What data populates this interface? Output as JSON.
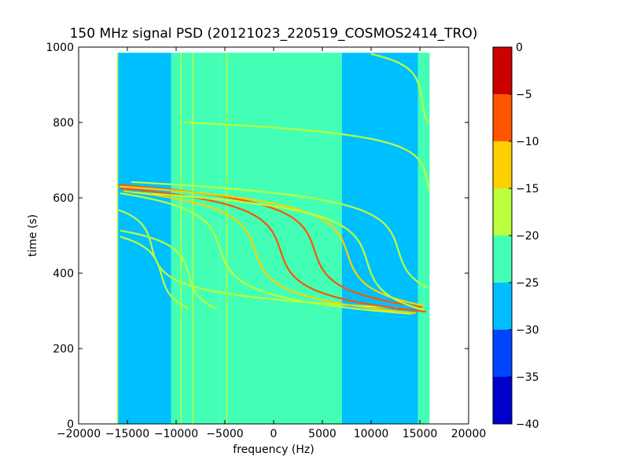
{
  "chart_data": {
    "type": "heatmap",
    "title": "150 MHz signal PSD (20121023_220519_COSMOS2414_TRO)",
    "xlabel": "frequency (Hz)",
    "ylabel": "time (s)",
    "xlim": [
      -20000,
      20000
    ],
    "ylim": [
      0,
      1000
    ],
    "x_ticks": [
      -20000,
      -15000,
      -10000,
      -5000,
      0,
      5000,
      10000,
      15000,
      20000
    ],
    "y_ticks": [
      0,
      200,
      400,
      600,
      800,
      1000
    ],
    "data_extent": {
      "x": [
        -16000,
        16000
      ],
      "y": [
        0,
        985
      ]
    },
    "grid": false,
    "colorbar": {
      "levels": [
        -40,
        -35,
        -30,
        -25,
        -20,
        -15,
        -10,
        -5,
        0
      ],
      "colors": [
        "#0000cd",
        "#0044ff",
        "#00bfff",
        "#43ffb5",
        "#b9ff3d",
        "#ffd000",
        "#ff5500",
        "#cd0000"
      ]
    },
    "background_bands": [
      {
        "x": [
          -16000,
          -10500
        ],
        "level": -27.5
      },
      {
        "x": [
          -10500,
          -5500
        ],
        "level": -25.0
      },
      {
        "x": [
          -5500,
          7000
        ],
        "level": -22.5
      },
      {
        "x": [
          7000,
          14800
        ],
        "level": -27.5
      },
      {
        "x": [
          14800,
          16000
        ],
        "level": -25.0
      }
    ],
    "vertical_lines": [
      {
        "f": -16000,
        "level": -17.5
      },
      {
        "f": -9500,
        "level": -17.5
      },
      {
        "f": -9000,
        "level": -22.5
      },
      {
        "f": -8300,
        "level": -17.5
      },
      {
        "f": -4800,
        "level": -17.5
      },
      {
        "f": -4600,
        "level": -22.5
      },
      {
        "f": 15500,
        "level": -22.5
      }
    ],
    "traces": [
      {
        "f_mid": -11500,
        "t_mid": 395,
        "k": 11,
        "s": 32,
        "t_range": [
          305,
          990
        ],
        "level": -17.5
      },
      {
        "f_mid": -8700,
        "t_mid": 395,
        "k": 11,
        "s": 32,
        "t_range": [
          305,
          990
        ],
        "level": -17.5
      },
      {
        "f_mid": -12500,
        "t_mid": 470,
        "k": 10,
        "s": 32,
        "t_range": [
          260,
          880
        ],
        "level": -17.5
      },
      {
        "f_mid": -5500,
        "t_mid": 465,
        "k": 13,
        "s": 40,
        "t_range": [
          240,
          880
        ],
        "level": -17.5
      },
      {
        "f_mid": -1900,
        "t_mid": 460,
        "k": 13,
        "s": 40,
        "t_range": [
          210,
          930
        ],
        "level": -12.5
      },
      {
        "f_mid": 700,
        "t_mid": 460,
        "k": 13,
        "s": 40,
        "t_range": [
          190,
          960
        ],
        "level": -7.5
      },
      {
        "f_mid": 4200,
        "t_mid": 460,
        "k": 13,
        "s": 40,
        "t_range": [
          170,
          960
        ],
        "level": -7.5
      },
      {
        "f_mid": 7600,
        "t_mid": 450,
        "k": 13,
        "s": 40,
        "t_range": [
          150,
          920
        ],
        "level": -12.5
      },
      {
        "f_mid": 9600,
        "t_mid": 430,
        "k": 12,
        "s": 40,
        "t_range": [
          150,
          900
        ],
        "level": -17.5
      },
      {
        "f_mid": 12800,
        "t_mid": 460,
        "k": 12,
        "s": 38,
        "t_range": [
          150,
          900
        ],
        "level": -17.5
      },
      {
        "f_mid": 15800,
        "t_mid": 640,
        "k": 8,
        "s": 30,
        "t_range": [
          420,
          800
        ],
        "level": -17.5
      },
      {
        "f_mid": 15200,
        "t_mid": 860,
        "k": 6,
        "s": 30,
        "t_range": [
          790,
          985
        ],
        "level": -17.5
      }
    ]
  }
}
